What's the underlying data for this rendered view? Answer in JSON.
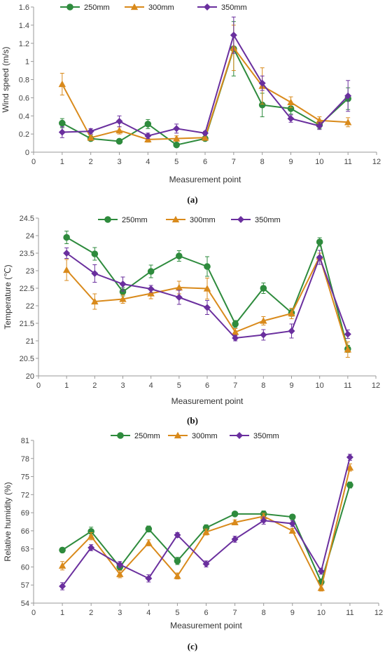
{
  "chart_data": [
    {
      "type": "line",
      "caption": "(a)",
      "xlabel": "Measurement point",
      "ylabel": "Wind speed (m/s)",
      "xlim": [
        0,
        12
      ],
      "ylim": [
        0,
        1.6
      ],
      "xticks": [
        0,
        1,
        2,
        3,
        4,
        5,
        6,
        7,
        8,
        9,
        10,
        11,
        12
      ],
      "yticks": [
        "0",
        "0.2",
        "0.4",
        "0.6",
        "0.8",
        "1",
        "1.2",
        "1.4",
        "1.6"
      ],
      "legend_position": "top",
      "x": [
        1,
        2,
        3,
        4,
        5,
        6,
        7,
        8,
        9,
        10,
        11
      ],
      "series": [
        {
          "name": "250mm",
          "color": "#2e8b3d",
          "marker": "circle",
          "values": [
            0.32,
            0.15,
            0.12,
            0.31,
            0.08,
            0.15,
            1.14,
            0.52,
            0.48,
            0.3,
            0.59
          ],
          "errors": [
            0.05,
            0.02,
            0.02,
            0.05,
            0.02,
            0.02,
            0.3,
            0.13,
            0.06,
            0.04,
            0.12
          ]
        },
        {
          "name": "300mm",
          "color": "#d98a1b",
          "marker": "triangle",
          "values": [
            0.75,
            0.16,
            0.24,
            0.14,
            0.15,
            0.16,
            1.15,
            0.73,
            0.55,
            0.35,
            0.33
          ],
          "errors": [
            0.12,
            0.03,
            0.04,
            0.03,
            0.03,
            0.03,
            0.25,
            0.2,
            0.06,
            0.04,
            0.05
          ]
        },
        {
          "name": "350mm",
          "color": "#6a2f9e",
          "marker": "diamond",
          "values": [
            0.22,
            0.23,
            0.34,
            0.18,
            0.26,
            0.21,
            1.29,
            0.76,
            0.37,
            0.29,
            0.62
          ],
          "errors": [
            0.06,
            0.03,
            0.06,
            0.03,
            0.05,
            0.02,
            0.2,
            0.08,
            0.04,
            0.04,
            0.17
          ]
        }
      ]
    },
    {
      "type": "line",
      "caption": "(b)",
      "xlabel": "Measurement point",
      "ylabel": "Temperature (℃)",
      "xlim": [
        0,
        12
      ],
      "ylim": [
        20,
        24.5
      ],
      "xticks": [
        0,
        1,
        2,
        3,
        4,
        5,
        6,
        7,
        8,
        9,
        10,
        11,
        12
      ],
      "yticks": [
        "20",
        "20.5",
        "21",
        "21.5",
        "22",
        "22.5",
        "23",
        "23.5",
        "24",
        "24.5"
      ],
      "legend_position": "top",
      "x": [
        1,
        2,
        3,
        4,
        5,
        6,
        7,
        8,
        9,
        10,
        11
      ],
      "series": [
        {
          "name": "250mm",
          "color": "#2e8b3d",
          "marker": "circle",
          "values": [
            23.95,
            23.48,
            22.4,
            22.98,
            23.42,
            23.12,
            21.48,
            22.5,
            21.8,
            23.82,
            20.77
          ],
          "errors": [
            0.18,
            0.18,
            0.12,
            0.18,
            0.15,
            0.28,
            0.1,
            0.15,
            0.1,
            0.12,
            0.1
          ]
        },
        {
          "name": "300mm",
          "color": "#d98a1b",
          "marker": "triangle",
          "values": [
            23.02,
            22.12,
            22.19,
            22.35,
            22.52,
            22.49,
            21.25,
            21.57,
            21.78,
            23.4,
            20.75
          ],
          "errors": [
            0.3,
            0.22,
            0.12,
            0.15,
            0.18,
            0.3,
            0.1,
            0.12,
            0.15,
            0.1,
            0.22
          ]
        },
        {
          "name": "350mm",
          "color": "#6a2f9e",
          "marker": "diamond",
          "values": [
            23.5,
            22.92,
            22.62,
            22.48,
            22.24,
            21.95,
            21.08,
            21.17,
            21.28,
            23.38,
            21.19
          ],
          "errors": [
            0.15,
            0.25,
            0.2,
            0.1,
            0.2,
            0.2,
            0.08,
            0.15,
            0.2,
            0.2,
            0.12
          ]
        }
      ]
    },
    {
      "type": "line",
      "caption": "(c)",
      "xlabel": "Measurement point",
      "ylabel": "Relative humidity (%)",
      "xlim": [
        0,
        12
      ],
      "ylim": [
        54,
        81
      ],
      "xticks": [
        0,
        1,
        2,
        3,
        4,
        5,
        6,
        7,
        8,
        9,
        10,
        11,
        12
      ],
      "yticks": [
        "54",
        "57",
        "60",
        "63",
        "66",
        "69",
        "72",
        "75",
        "78",
        "81"
      ],
      "legend_position": "top",
      "x": [
        1,
        2,
        3,
        4,
        5,
        6,
        7,
        8,
        9,
        10,
        11
      ],
      "series": [
        {
          "name": "250mm",
          "color": "#2e8b3d",
          "marker": "circle",
          "values": [
            62.8,
            65.9,
            60.0,
            66.3,
            61.0,
            66.5,
            68.8,
            68.8,
            68.3,
            57.5,
            73.6
          ],
          "errors": [
            0.4,
            0.7,
            0.5,
            0.5,
            0.6,
            0.5,
            0.3,
            0.5,
            0.4,
            0.5,
            0.5
          ]
        },
        {
          "name": "300mm",
          "color": "#d98a1b",
          "marker": "triangle",
          "values": [
            60.2,
            65.1,
            58.8,
            64.0,
            58.5,
            65.8,
            67.4,
            68.4,
            66.0,
            56.5,
            76.5
          ],
          "errors": [
            0.7,
            0.6,
            0.6,
            0.5,
            0.5,
            0.5,
            0.4,
            0.5,
            0.4,
            0.5,
            0.6
          ]
        },
        {
          "name": "350mm",
          "color": "#6a2f9e",
          "marker": "diamond",
          "values": [
            56.8,
            63.2,
            60.4,
            58.1,
            65.3,
            60.5,
            64.6,
            67.7,
            67.2,
            59.3,
            78.2
          ],
          "errors": [
            0.6,
            0.5,
            0.5,
            0.6,
            0.4,
            0.5,
            0.5,
            0.6,
            0.5,
            0.5,
            0.5
          ]
        }
      ]
    }
  ]
}
